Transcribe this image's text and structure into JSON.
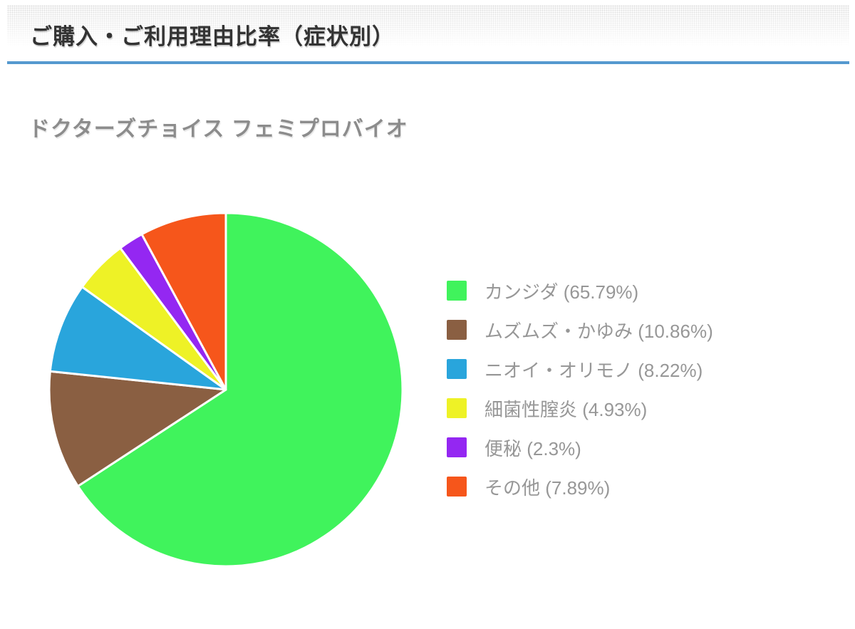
{
  "header": {
    "title": "ご購入・ご利用理由比率（症状別）",
    "divider_color": "#5599cf"
  },
  "subtitle": "ドクターズチョイス フェミプロバイオ",
  "chart_data": {
    "type": "pie",
    "title": "ドクターズチョイス フェミプロバイオ",
    "start_angle_deg": 0,
    "direction": "clockwise",
    "legend_position": "right",
    "slice_border_color": "#ffffff",
    "slices": [
      {
        "label": "カンジダ",
        "value": 65.79,
        "color": "#40f35c",
        "legend_label": "カンジダ (65.79%)"
      },
      {
        "label": "ムズムズ・かゆみ",
        "value": 10.86,
        "color": "#8a5f42",
        "legend_label": "ムズムズ・かゆみ (10.86%)"
      },
      {
        "label": "ニオイ・オリモノ",
        "value": 8.22,
        "color": "#29a5dc",
        "legend_label": "ニオイ・オリモノ (8.22%)"
      },
      {
        "label": "細菌性膣炎",
        "value": 4.93,
        "color": "#eef226",
        "legend_label": "細菌性膣炎 (4.93%)"
      },
      {
        "label": "便秘",
        "value": 2.3,
        "color": "#9427f2",
        "legend_label": "便秘 (2.3%)"
      },
      {
        "label": "その他",
        "value": 7.89,
        "color": "#f6561b",
        "legend_label": "その他 (7.89%)"
      }
    ]
  }
}
